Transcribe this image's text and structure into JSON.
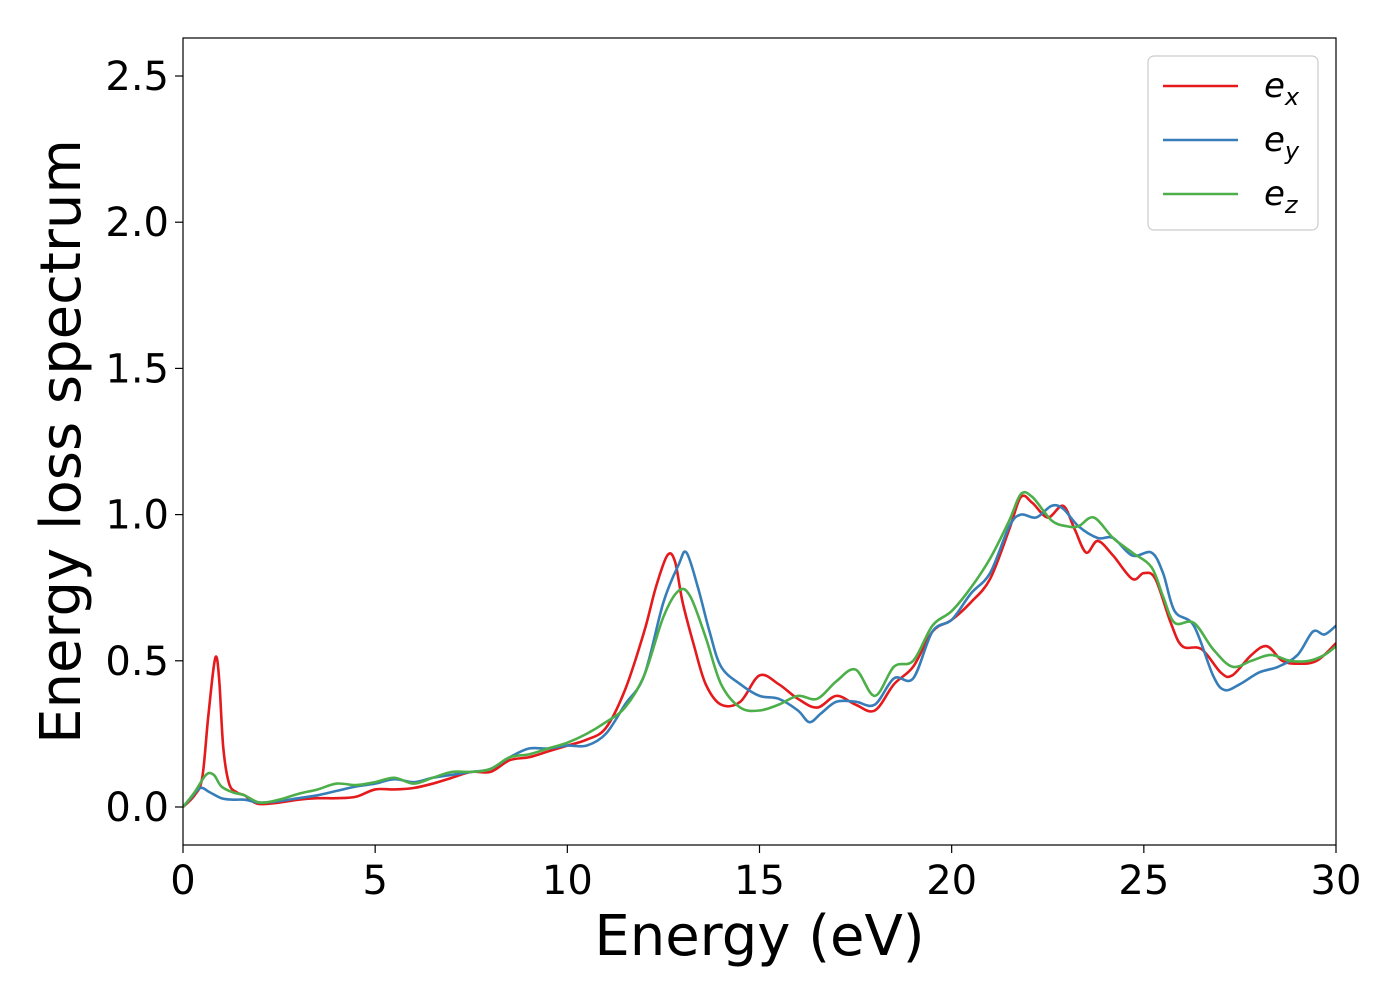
{
  "chart_data": {
    "type": "line",
    "title": "",
    "xlabel": "Energy (eV)",
    "ylabel": "Energy loss spectrum",
    "xlim": [
      0,
      30
    ],
    "ylim": [
      -0.13,
      2.63
    ],
    "xticks": [
      0,
      5,
      10,
      15,
      20,
      25,
      30
    ],
    "xtick_labels": [
      "0",
      "5",
      "10",
      "15",
      "20",
      "25",
      "30"
    ],
    "yticks": [
      0.0,
      0.5,
      1.0,
      1.5,
      2.0,
      2.5
    ],
    "ytick_labels": [
      "0.0",
      "0.5",
      "1.0",
      "1.5",
      "2.0",
      "2.5"
    ],
    "grid": false,
    "legend_position": "top-right",
    "series": [
      {
        "name": "e_x",
        "legend_base": "e",
        "legend_sub": "x",
        "color": "#e41a1c",
        "points": [
          [
            0,
            0.0
          ],
          [
            0.3,
            0.04
          ],
          [
            0.5,
            0.1
          ],
          [
            0.65,
            0.3
          ],
          [
            0.8,
            0.48
          ],
          [
            0.88,
            0.51
          ],
          [
            0.95,
            0.42
          ],
          [
            1.05,
            0.2
          ],
          [
            1.2,
            0.08
          ],
          [
            1.4,
            0.05
          ],
          [
            1.6,
            0.04
          ],
          [
            1.8,
            0.02
          ],
          [
            2,
            0.01
          ],
          [
            2.5,
            0.015
          ],
          [
            3,
            0.025
          ],
          [
            3.5,
            0.03
          ],
          [
            4,
            0.03
          ],
          [
            4.5,
            0.035
          ],
          [
            5,
            0.06
          ],
          [
            5.5,
            0.06
          ],
          [
            6,
            0.065
          ],
          [
            6.5,
            0.08
          ],
          [
            7,
            0.1
          ],
          [
            7.5,
            0.12
          ],
          [
            8,
            0.12
          ],
          [
            8.5,
            0.16
          ],
          [
            9,
            0.17
          ],
          [
            9.5,
            0.19
          ],
          [
            10,
            0.21
          ],
          [
            10.5,
            0.23
          ],
          [
            11,
            0.27
          ],
          [
            11.5,
            0.4
          ],
          [
            12,
            0.6
          ],
          [
            12.3,
            0.75
          ],
          [
            12.6,
            0.86
          ],
          [
            12.8,
            0.84
          ],
          [
            13,
            0.7
          ],
          [
            13.3,
            0.55
          ],
          [
            13.6,
            0.42
          ],
          [
            14,
            0.35
          ],
          [
            14.5,
            0.36
          ],
          [
            15,
            0.45
          ],
          [
            15.5,
            0.42
          ],
          [
            16,
            0.37
          ],
          [
            16.5,
            0.34
          ],
          [
            17,
            0.38
          ],
          [
            17.5,
            0.35
          ],
          [
            18,
            0.33
          ],
          [
            18.5,
            0.42
          ],
          [
            19,
            0.48
          ],
          [
            19.5,
            0.6
          ],
          [
            20,
            0.64
          ],
          [
            20.5,
            0.7
          ],
          [
            21,
            0.78
          ],
          [
            21.5,
            0.95
          ],
          [
            21.8,
            1.06
          ],
          [
            22.1,
            1.04
          ],
          [
            22.5,
            0.99
          ],
          [
            22.9,
            1.03
          ],
          [
            23.2,
            0.95
          ],
          [
            23.5,
            0.87
          ],
          [
            23.8,
            0.91
          ],
          [
            24.2,
            0.86
          ],
          [
            24.7,
            0.78
          ],
          [
            25,
            0.8
          ],
          [
            25.3,
            0.78
          ],
          [
            25.7,
            0.63
          ],
          [
            26,
            0.55
          ],
          [
            26.5,
            0.54
          ],
          [
            27,
            0.46
          ],
          [
            27.3,
            0.45
          ],
          [
            27.8,
            0.52
          ],
          [
            28.2,
            0.55
          ],
          [
            28.6,
            0.5
          ],
          [
            29,
            0.49
          ],
          [
            29.5,
            0.5
          ],
          [
            30,
            0.56
          ]
        ]
      },
      {
        "name": "e_y",
        "legend_base": "e",
        "legend_sub": "y",
        "color": "#377eb8",
        "points": [
          [
            0,
            0.0
          ],
          [
            0.2,
            0.03
          ],
          [
            0.45,
            0.065
          ],
          [
            0.7,
            0.05
          ],
          [
            1.0,
            0.03
          ],
          [
            1.3,
            0.025
          ],
          [
            1.6,
            0.025
          ],
          [
            2,
            0.015
          ],
          [
            2.5,
            0.02
          ],
          [
            3,
            0.03
          ],
          [
            3.5,
            0.04
          ],
          [
            4,
            0.055
          ],
          [
            4.5,
            0.07
          ],
          [
            5,
            0.08
          ],
          [
            5.5,
            0.095
          ],
          [
            6,
            0.085
          ],
          [
            6.5,
            0.1
          ],
          [
            7,
            0.11
          ],
          [
            7.5,
            0.12
          ],
          [
            8,
            0.13
          ],
          [
            8.5,
            0.17
          ],
          [
            9,
            0.2
          ],
          [
            9.5,
            0.2
          ],
          [
            10,
            0.21
          ],
          [
            10.5,
            0.21
          ],
          [
            11,
            0.25
          ],
          [
            11.5,
            0.35
          ],
          [
            12,
            0.45
          ],
          [
            12.5,
            0.7
          ],
          [
            12.9,
            0.83
          ],
          [
            13.1,
            0.87
          ],
          [
            13.4,
            0.75
          ],
          [
            13.7,
            0.6
          ],
          [
            14,
            0.48
          ],
          [
            14.5,
            0.42
          ],
          [
            15,
            0.38
          ],
          [
            15.5,
            0.37
          ],
          [
            16,
            0.33
          ],
          [
            16.3,
            0.29
          ],
          [
            16.6,
            0.32
          ],
          [
            17,
            0.36
          ],
          [
            17.5,
            0.36
          ],
          [
            18,
            0.35
          ],
          [
            18.5,
            0.44
          ],
          [
            19,
            0.44
          ],
          [
            19.5,
            0.6
          ],
          [
            20,
            0.64
          ],
          [
            20.5,
            0.73
          ],
          [
            21,
            0.8
          ],
          [
            21.5,
            0.96
          ],
          [
            21.8,
            1.0
          ],
          [
            22.2,
            0.99
          ],
          [
            22.6,
            1.03
          ],
          [
            22.9,
            1.02
          ],
          [
            23.3,
            0.96
          ],
          [
            23.8,
            0.92
          ],
          [
            24.2,
            0.92
          ],
          [
            24.7,
            0.86
          ],
          [
            25.2,
            0.87
          ],
          [
            25.5,
            0.8
          ],
          [
            25.8,
            0.67
          ],
          [
            26.3,
            0.62
          ],
          [
            26.8,
            0.45
          ],
          [
            27.1,
            0.4
          ],
          [
            27.5,
            0.42
          ],
          [
            28,
            0.46
          ],
          [
            28.5,
            0.48
          ],
          [
            29,
            0.52
          ],
          [
            29.4,
            0.6
          ],
          [
            29.7,
            0.59
          ],
          [
            30,
            0.62
          ]
        ]
      },
      {
        "name": "e_z",
        "legend_base": "e",
        "legend_sub": "z",
        "color": "#4daf4a",
        "points": [
          [
            0,
            0.0
          ],
          [
            0.3,
            0.05
          ],
          [
            0.6,
            0.11
          ],
          [
            0.8,
            0.11
          ],
          [
            1.0,
            0.07
          ],
          [
            1.3,
            0.05
          ],
          [
            1.6,
            0.04
          ],
          [
            2,
            0.015
          ],
          [
            2.5,
            0.025
          ],
          [
            3,
            0.045
          ],
          [
            3.5,
            0.06
          ],
          [
            4,
            0.08
          ],
          [
            4.5,
            0.075
          ],
          [
            5,
            0.085
          ],
          [
            5.5,
            0.1
          ],
          [
            6,
            0.08
          ],
          [
            6.5,
            0.1
          ],
          [
            7,
            0.12
          ],
          [
            7.5,
            0.12
          ],
          [
            8,
            0.13
          ],
          [
            8.5,
            0.17
          ],
          [
            9,
            0.18
          ],
          [
            9.5,
            0.2
          ],
          [
            10,
            0.22
          ],
          [
            10.5,
            0.25
          ],
          [
            11,
            0.29
          ],
          [
            11.5,
            0.34
          ],
          [
            12,
            0.45
          ],
          [
            12.5,
            0.65
          ],
          [
            12.9,
            0.74
          ],
          [
            13.2,
            0.72
          ],
          [
            13.6,
            0.58
          ],
          [
            14,
            0.42
          ],
          [
            14.5,
            0.34
          ],
          [
            15,
            0.33
          ],
          [
            15.5,
            0.35
          ],
          [
            16,
            0.38
          ],
          [
            16.5,
            0.37
          ],
          [
            17,
            0.43
          ],
          [
            17.5,
            0.47
          ],
          [
            18,
            0.38
          ],
          [
            18.5,
            0.48
          ],
          [
            19,
            0.5
          ],
          [
            19.5,
            0.62
          ],
          [
            20,
            0.67
          ],
          [
            20.5,
            0.75
          ],
          [
            21,
            0.85
          ],
          [
            21.5,
            0.98
          ],
          [
            21.8,
            1.07
          ],
          [
            22.1,
            1.06
          ],
          [
            22.6,
            0.98
          ],
          [
            23,
            0.96
          ],
          [
            23.3,
            0.96
          ],
          [
            23.7,
            0.99
          ],
          [
            24.2,
            0.92
          ],
          [
            24.7,
            0.87
          ],
          [
            25.2,
            0.82
          ],
          [
            25.5,
            0.72
          ],
          [
            25.8,
            0.63
          ],
          [
            26.3,
            0.63
          ],
          [
            26.8,
            0.54
          ],
          [
            27.3,
            0.48
          ],
          [
            27.8,
            0.5
          ],
          [
            28.3,
            0.52
          ],
          [
            28.8,
            0.5
          ],
          [
            29.3,
            0.5
          ],
          [
            29.7,
            0.52
          ],
          [
            30,
            0.55
          ]
        ]
      }
    ]
  }
}
